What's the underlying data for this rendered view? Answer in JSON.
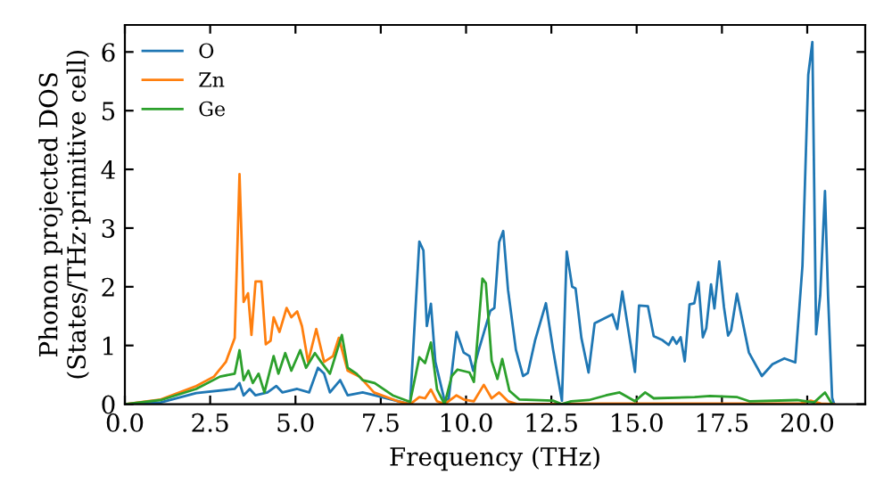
{
  "chart_data": {
    "type": "line",
    "xlabel": "Frequency (THz)",
    "ylabel": "Phonon projected DOS\n(States/THz·primitive cell)",
    "xlim": [
      0,
      21.7
    ],
    "ylim": [
      0,
      6.46
    ],
    "xticks": [
      {
        "value": 0,
        "label": "0.0"
      },
      {
        "value": 2.5,
        "label": "2.5"
      },
      {
        "value": 5,
        "label": "5.0"
      },
      {
        "value": 7.5,
        "label": "7.5"
      },
      {
        "value": 10,
        "label": "10.0"
      },
      {
        "value": 12.5,
        "label": "12.5"
      },
      {
        "value": 15,
        "label": "15.0"
      },
      {
        "value": 17.5,
        "label": "17.5"
      },
      {
        "value": 20,
        "label": "20.0"
      }
    ],
    "yticks": [
      0,
      1,
      2,
      3,
      4,
      5,
      6
    ],
    "grid": false,
    "legend": "top left",
    "marker": "none",
    "line_style": "solid",
    "series": [
      {
        "name": "O",
        "color": "#1f77b4",
        "x": [
          0,
          1.05,
          2.09,
          3.22,
          3.36,
          3.48,
          3.66,
          3.83,
          4.18,
          4.44,
          4.62,
          5.05,
          5.4,
          5.66,
          5.84,
          6.01,
          6.31,
          6.53,
          6.97,
          7.32,
          8.02,
          8.36,
          8.63,
          8.75,
          8.85,
          8.97,
          9.1,
          9.37,
          9.49,
          9.72,
          9.93,
          10.1,
          10.21,
          10.36,
          10.71,
          10.83,
          10.97,
          11.09,
          11.23,
          11.46,
          11.67,
          11.81,
          12.02,
          12.34,
          12.55,
          12.81,
          12.95,
          13.11,
          13.21,
          13.38,
          13.59,
          13.77,
          13.94,
          14.29,
          14.43,
          14.58,
          14.95,
          15.07,
          15.33,
          15.5,
          15.76,
          15.94,
          16.06,
          16.17,
          16.29,
          16.41,
          16.55,
          16.69,
          16.81,
          16.94,
          17.04,
          17.18,
          17.28,
          17.42,
          17.56,
          17.68,
          17.77,
          17.94,
          18.29,
          18.67,
          18.98,
          19.33,
          19.65,
          19.86,
          20.03,
          20.15,
          20.26,
          20.38,
          20.52,
          20.61,
          20.73,
          20.79
        ],
        "values": [
          0,
          0.03,
          0.19,
          0.26,
          0.36,
          0.15,
          0.26,
          0.15,
          0.2,
          0.31,
          0.2,
          0.26,
          0.2,
          0.62,
          0.52,
          0.2,
          0.41,
          0.15,
          0.2,
          0.15,
          0.05,
          0.0,
          2.77,
          2.62,
          1.33,
          1.71,
          0.72,
          0.06,
          0.09,
          1.23,
          0.88,
          0.82,
          0.57,
          0.9,
          1.59,
          1.64,
          2.76,
          2.95,
          1.95,
          0.93,
          0.48,
          0.53,
          1.08,
          1.72,
          0.93,
          0.06,
          2.6,
          2.0,
          1.97,
          1.13,
          0.54,
          1.38,
          1.43,
          1.53,
          1.28,
          1.92,
          0.55,
          1.68,
          1.67,
          1.16,
          1.09,
          1.01,
          1.14,
          1.03,
          1.14,
          0.73,
          1.7,
          1.72,
          2.08,
          1.14,
          1.29,
          2.04,
          1.63,
          2.43,
          1.65,
          1.17,
          1.26,
          1.88,
          0.88,
          0.48,
          0.68,
          0.78,
          0.71,
          2.36,
          5.61,
          6.17,
          1.19,
          1.85,
          3.63,
          1.85,
          0.11,
          0.0
        ]
      },
      {
        "name": "Zn",
        "color": "#ff7f0e",
        "x": [
          0,
          1.05,
          2.09,
          2.61,
          2.96,
          3.22,
          3.36,
          3.48,
          3.61,
          3.71,
          3.83,
          4.0,
          4.13,
          4.27,
          4.36,
          4.53,
          4.74,
          4.88,
          5.05,
          5.19,
          5.37,
          5.61,
          5.84,
          6.1,
          6.27,
          6.53,
          6.88,
          7.3,
          8.0,
          8.36,
          8.63,
          8.8,
          8.97,
          9.15,
          9.37,
          9.72,
          9.93,
          10.23,
          10.52,
          10.75,
          10.97,
          11.23,
          11.5,
          14.0,
          17.0,
          19.8,
          20.1,
          20.4,
          20.79
        ],
        "values": [
          0,
          0.08,
          0.31,
          0.47,
          0.72,
          1.13,
          3.92,
          1.74,
          1.89,
          1.18,
          2.09,
          2.09,
          1.02,
          1.08,
          1.48,
          1.23,
          1.64,
          1.48,
          1.58,
          1.33,
          0.72,
          1.28,
          0.72,
          0.82,
          1.13,
          0.57,
          0.47,
          0.2,
          0.05,
          0.0,
          0.12,
          0.1,
          0.25,
          0.05,
          0.0,
          0.15,
          0.08,
          0.05,
          0.33,
          0.1,
          0.2,
          0.05,
          0.0,
          0.01,
          0.01,
          0.01,
          0.06,
          0.01,
          0.0
        ]
      },
      {
        "name": "Ge",
        "color": "#2ca02c",
        "x": [
          0,
          1.05,
          2.09,
          2.79,
          3.22,
          3.36,
          3.48,
          3.62,
          3.75,
          3.92,
          4.09,
          4.36,
          4.5,
          4.7,
          4.88,
          5.14,
          5.31,
          5.57,
          5.75,
          6.01,
          6.36,
          6.53,
          6.79,
          6.97,
          7.32,
          7.85,
          8.36,
          8.63,
          8.8,
          8.97,
          9.15,
          9.37,
          9.58,
          9.75,
          10.1,
          10.23,
          10.48,
          10.58,
          10.75,
          10.92,
          11.06,
          11.27,
          11.56,
          12.55,
          12.8,
          13.08,
          13.6,
          14.1,
          14.5,
          14.95,
          15.25,
          15.5,
          16.7,
          17.15,
          17.95,
          18.3,
          19.7,
          20.2,
          20.52,
          20.73
        ],
        "values": [
          0,
          0.07,
          0.26,
          0.47,
          0.52,
          0.92,
          0.41,
          0.57,
          0.36,
          0.52,
          0.2,
          0.82,
          0.52,
          0.87,
          0.57,
          0.92,
          0.62,
          0.87,
          0.72,
          0.52,
          1.18,
          0.62,
          0.52,
          0.41,
          0.36,
          0.15,
          0.04,
          0.8,
          0.7,
          1.05,
          0.25,
          0.0,
          0.48,
          0.59,
          0.54,
          0.38,
          2.14,
          2.06,
          0.74,
          0.43,
          0.77,
          0.23,
          0.08,
          0.06,
          0.0,
          0.05,
          0.07,
          0.15,
          0.2,
          0.05,
          0.2,
          0.1,
          0.12,
          0.14,
          0.12,
          0.05,
          0.07,
          0.03,
          0.2,
          0.0
        ]
      }
    ]
  }
}
